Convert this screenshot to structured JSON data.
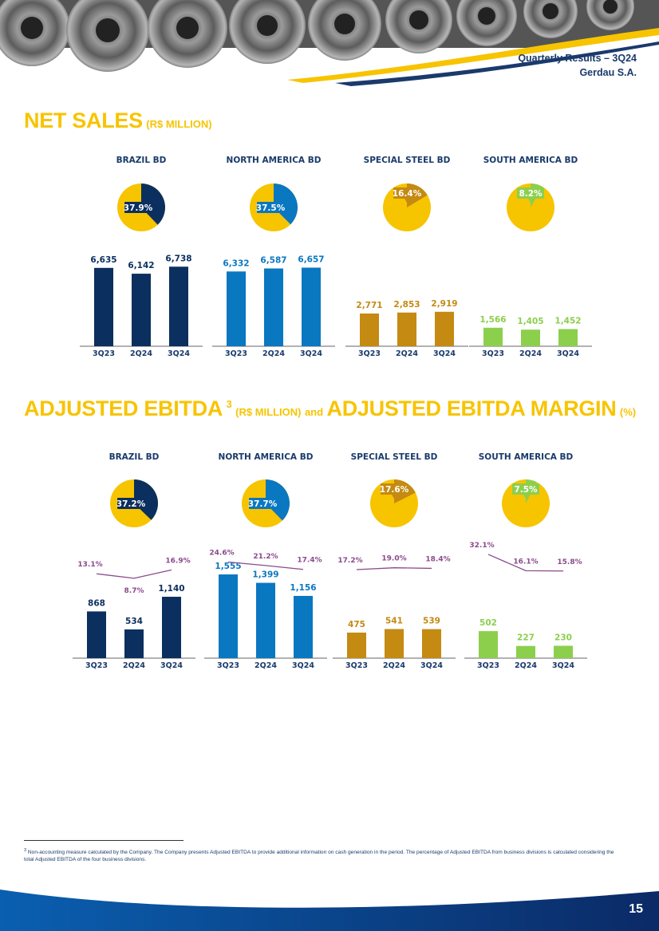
{
  "header": {
    "line1": "Quarterly Results – 3Q24",
    "line2": "Gerdau S.A."
  },
  "net_sales": {
    "title": "NET SALES",
    "unit": "(R$ MILLION)"
  },
  "ebitda": {
    "title1": "ADJUSTED EBITDA",
    "footnote_ref": "3",
    "unit1": "(R$ MILLION)",
    "and_text": "and",
    "title2": "ADJUSTED EBITDA MARGIN",
    "unit2": "(%)"
  },
  "colors": {
    "yellow": "#f7c400",
    "navy": "#0b2f5e",
    "blue": "#0a77c1",
    "gold": "#c48a12",
    "green": "#8ccf4d",
    "purple": "#8b4a8c",
    "axis_text": "#1a3a6b"
  },
  "chart_data": [
    {
      "type": "bar",
      "group": "net_sales",
      "title": "BRAZIL BD",
      "categories": [
        "3Q23",
        "2Q24",
        "3Q24"
      ],
      "values": [
        6635,
        6142,
        6738
      ],
      "value_labels": [
        "6,635",
        "6,142",
        "6,738"
      ],
      "pie_share": 37.9,
      "pie_label": "37.9%",
      "color": "#0b2f5e"
    },
    {
      "type": "bar",
      "group": "net_sales",
      "title": "NORTH AMERICA BD",
      "categories": [
        "3Q23",
        "2Q24",
        "3Q24"
      ],
      "values": [
        6332,
        6587,
        6657
      ],
      "value_labels": [
        "6,332",
        "6,587",
        "6,657"
      ],
      "pie_share": 37.5,
      "pie_label": "37.5%",
      "color": "#0a77c1"
    },
    {
      "type": "bar",
      "group": "net_sales",
      "title": "SPECIAL STEEL BD",
      "categories": [
        "3Q23",
        "2Q24",
        "3Q24"
      ],
      "values": [
        2771,
        2853,
        2919
      ],
      "value_labels": [
        "2,771",
        "2,853",
        "2,919"
      ],
      "pie_share": 16.4,
      "pie_label": "16.4%",
      "color": "#c48a12"
    },
    {
      "type": "bar",
      "group": "net_sales",
      "title": "SOUTH AMERICA BD",
      "categories": [
        "3Q23",
        "2Q24",
        "3Q24"
      ],
      "values": [
        1566,
        1405,
        1452
      ],
      "value_labels": [
        "1,566",
        "1,405",
        "1,452"
      ],
      "pie_share": 8.2,
      "pie_label": "8.2%",
      "color": "#8ccf4d"
    },
    {
      "type": "bar",
      "group": "ebitda",
      "title": "BRAZIL BD",
      "categories": [
        "3Q23",
        "2Q24",
        "3Q24"
      ],
      "values": [
        868,
        534,
        1140
      ],
      "value_labels": [
        "868",
        "534",
        "1,140"
      ],
      "margins": [
        13.1,
        8.7,
        16.9
      ],
      "margin_labels": [
        "13.1%",
        "8.7%",
        "16.9%"
      ],
      "pie_share": 37.2,
      "pie_label": "37.2%",
      "color": "#0b2f5e"
    },
    {
      "type": "bar",
      "group": "ebitda",
      "title": "NORTH AMERICA BD",
      "categories": [
        "3Q23",
        "2Q24",
        "3Q24"
      ],
      "values": [
        1555,
        1399,
        1156
      ],
      "value_labels": [
        "1,555",
        "1,399",
        "1,156"
      ],
      "margins": [
        24.6,
        21.2,
        17.4
      ],
      "margin_labels": [
        "24.6%",
        "21.2%",
        "17.4%"
      ],
      "pie_share": 37.7,
      "pie_label": "37.7%",
      "color": "#0a77c1"
    },
    {
      "type": "bar",
      "group": "ebitda",
      "title": "SPECIAL STEEL BD",
      "categories": [
        "3Q23",
        "2Q24",
        "3Q24"
      ],
      "values": [
        475,
        541,
        539
      ],
      "value_labels": [
        "475",
        "541",
        "539"
      ],
      "margins": [
        17.2,
        19.0,
        18.4
      ],
      "margin_labels": [
        "17.2%",
        "19.0%",
        "18.4%"
      ],
      "pie_share": 17.6,
      "pie_label": "17.6%",
      "color": "#c48a12"
    },
    {
      "type": "bar",
      "group": "ebitda",
      "title": "SOUTH AMERICA BD",
      "categories": [
        "3Q23",
        "2Q24",
        "3Q24"
      ],
      "values": [
        502,
        227,
        230
      ],
      "value_labels": [
        "502",
        "227",
        "230"
      ],
      "margins": [
        32.1,
        16.1,
        15.8
      ],
      "margin_labels": [
        "32.1%",
        "16.1%",
        "15.8%"
      ],
      "pie_share": 7.5,
      "pie_label": "7.5%",
      "color": "#8ccf4d"
    }
  ],
  "footnote": {
    "ref": "3",
    "text": "Non-accounting measure calculated by the Company. The Company presents Adjusted EBITDA to provide additional information on cash generation in the period. The percentage of Adjusted EBITDA from business divisions is calculated considering the total Adjusted EBITDA of the four business divisions."
  },
  "page_number": "15"
}
